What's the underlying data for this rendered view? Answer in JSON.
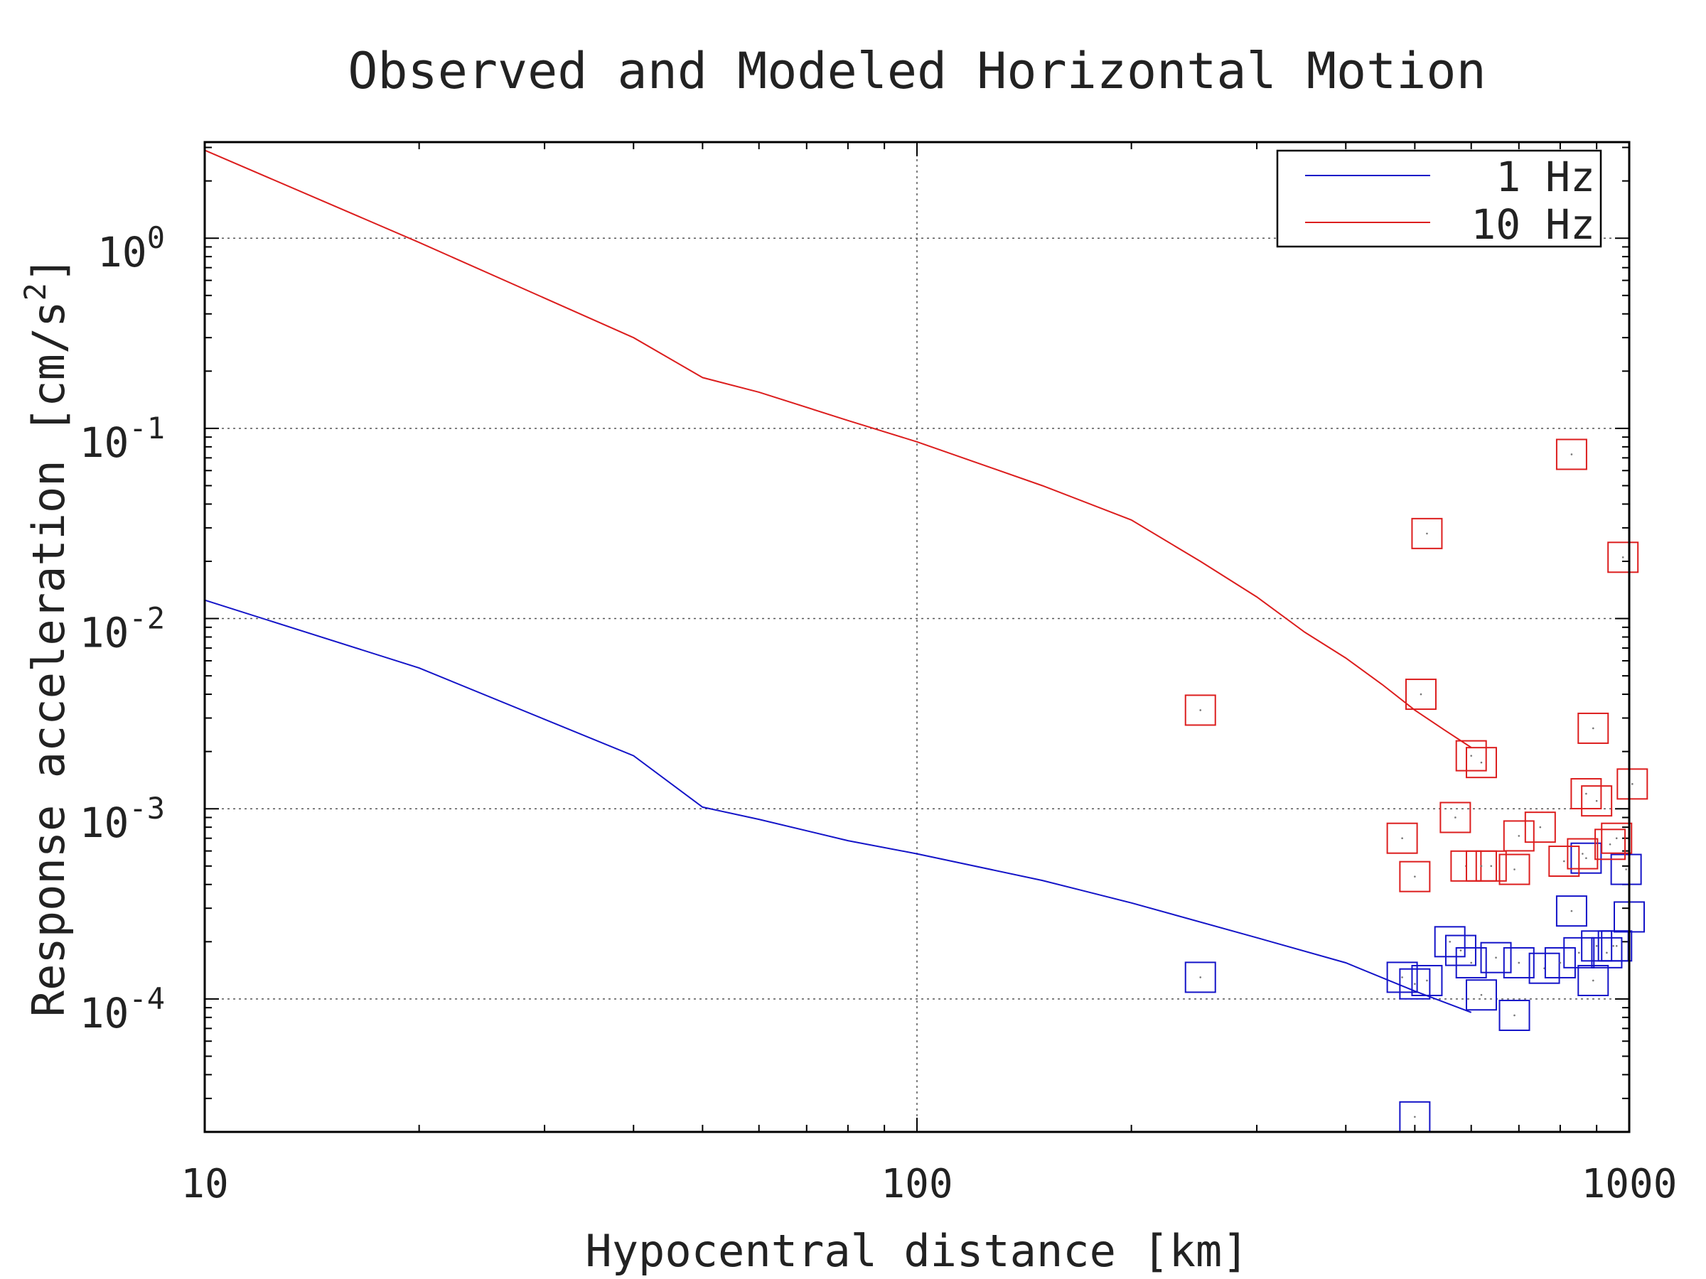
{
  "chart_data": {
    "type": "line",
    "title": "Observed and Modeled Horizontal Motion",
    "xlabel": "Hypocentral distance [km]",
    "ylabel_main": "Response acceleration [cm/s",
    "ylabel_sup": "2",
    "ylabel_end": "]",
    "xscale": "log",
    "yscale": "log",
    "xlim": [
      10,
      1000
    ],
    "ylim": [
      2e-05,
      3.2
    ],
    "x_ticks": [
      {
        "value": 10,
        "label": "10"
      },
      {
        "value": 100,
        "label": "100"
      },
      {
        "value": 1000,
        "label": "1000"
      }
    ],
    "y_ticks": [
      {
        "value": 1,
        "base": "10",
        "exp": "0"
      },
      {
        "value": 0.1,
        "base": "10",
        "exp": "-1"
      },
      {
        "value": 0.01,
        "base": "10",
        "exp": "-2"
      },
      {
        "value": 0.001,
        "base": "10",
        "exp": "-3"
      },
      {
        "value": 0.0001,
        "base": "10",
        "exp": "-4"
      }
    ],
    "grid": true,
    "legend_position": "top-right",
    "series": [
      {
        "name": "1 Hz",
        "color": "#1414c8",
        "model_line": {
          "x": [
            10,
            20,
            40,
            50,
            60,
            80,
            100,
            150,
            200,
            300,
            400,
            500,
            600
          ],
          "y": [
            0.0125,
            0.0055,
            0.0019,
            0.00102,
            0.00088,
            0.00068,
            0.00058,
            0.00042,
            0.00032,
            0.00021,
            0.000155,
            0.00011,
            8.5e-05
          ]
        },
        "observed": {
          "x": [
            250,
            480,
            500,
            520,
            500,
            560,
            580,
            600,
            620,
            650,
            690,
            700,
            760,
            800,
            830,
            850,
            870,
            890,
            900,
            930,
            950,
            960,
            990,
            1000
          ],
          "y": [
            0.00013,
            0.00013,
            0.00012,
            0.000125,
            2.4e-05,
            0.0002,
            0.00018,
            0.000155,
            0.000105,
            0.000165,
            8.2e-05,
            0.000155,
            0.000145,
            0.000155,
            0.00029,
            0.000175,
            0.00055,
            0.000125,
            0.00019,
            0.000175,
            0.00019,
            0.00019,
            0.00048,
            0.00027
          ]
        }
      },
      {
        "name": "10 Hz",
        "color": "#dc1e1e",
        "model_line": {
          "x": [
            10,
            20,
            40,
            50,
            60,
            80,
            100,
            150,
            200,
            250,
            300,
            350,
            400,
            450,
            500,
            550,
            600
          ],
          "y": [
            2.9,
            0.95,
            0.3,
            0.185,
            0.155,
            0.11,
            0.085,
            0.05,
            0.033,
            0.02,
            0.013,
            0.0085,
            0.0062,
            0.0045,
            0.0033,
            0.0026,
            0.0021
          ]
        },
        "observed": {
          "x": [
            250,
            480,
            500,
            510,
            520,
            570,
            590,
            600,
            620,
            620,
            640,
            690,
            700,
            750,
            810,
            830,
            860,
            870,
            890,
            900,
            940,
            960,
            980,
            1010
          ],
          "y": [
            0.0033,
            0.0007,
            0.00044,
            0.004,
            0.028,
            0.0009,
            0.0005,
            0.0019,
            0.0005,
            0.00175,
            0.0005,
            0.00048,
            0.00072,
            0.0008,
            0.00053,
            0.073,
            0.00058,
            0.0012,
            0.00265,
            0.0011,
            0.00065,
            0.0007,
            0.021,
            0.00135
          ]
        }
      }
    ]
  }
}
